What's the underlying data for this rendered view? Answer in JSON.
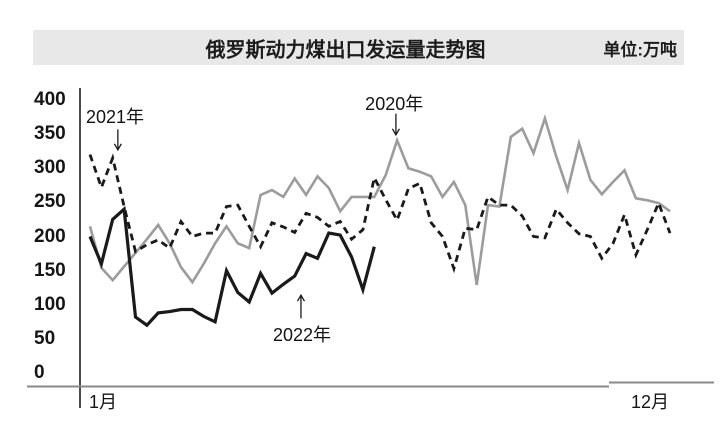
{
  "header": {
    "title": "俄罗斯动力煤出口发运量走势图",
    "unit_label": "单位:万吨"
  },
  "axes": {
    "y_ticks": [
      400,
      350,
      300,
      250,
      200,
      150,
      100,
      50,
      0
    ],
    "x_start_label": "1月",
    "x_end_label": "12月"
  },
  "annotations": [
    {
      "label": "2021年",
      "week": 3.2,
      "label_value": 377,
      "arrow_week": 3.45,
      "arrow_from_value": 357,
      "arrow_to_value": 327,
      "dir": "down"
    },
    {
      "label": "2020年",
      "week": 27.75,
      "label_value": 395,
      "arrow_week": 27.9,
      "arrow_from_value": 380,
      "arrow_to_value": 349,
      "dir": "down"
    },
    {
      "label": "2022年",
      "week": 19.64,
      "label_value": 57,
      "arrow_week": 19.55,
      "arrow_from_value": 80,
      "arrow_to_value": 114,
      "dir": "up"
    }
  ],
  "colors": {
    "ink": "#1a1a1a",
    "gray_series": "#9c9c9c",
    "axis_v": "#4a4a4a",
    "axis_h": "#8a8a8a",
    "titlebar_bg": "#e8e8e8"
  },
  "chart_data": {
    "type": "line",
    "title": "俄罗斯动力煤出口发运量走势图",
    "unit": "万吨",
    "x_unit": "week of year (weekly shipment volume)",
    "x_axis_labels_shown": [
      "1月",
      "12月"
    ],
    "ylim": [
      0,
      400
    ],
    "y_tick_step": 50,
    "grid": false,
    "legend": "inline arrow annotations (2020年 / 2021年 / 2022年)",
    "series": [
      {
        "name": "2020年",
        "style": "solid",
        "color": "#9c9c9c",
        "values": [
          215,
          154,
          136,
          156,
          176,
          196,
          217,
          190,
          155,
          133,
          160,
          190,
          215,
          190,
          183,
          261,
          268,
          258,
          285,
          261,
          288,
          271,
          237,
          258,
          258,
          258,
          290,
          341,
          300,
          295,
          288,
          258,
          280,
          246,
          129,
          246,
          244,
          346,
          358,
          322,
          373,
          317,
          268,
          337,
          283,
          262,
          280,
          297,
          256,
          253,
          249,
          237
        ]
      },
      {
        "name": "2021年",
        "style": "dashed",
        "color": "#1a1a1a",
        "values": [
          320,
          272,
          315,
          244,
          178,
          188,
          195,
          183,
          222,
          200,
          205,
          205,
          244,
          246,
          215,
          185,
          220,
          214,
          206,
          234,
          228,
          215,
          222,
          196,
          210,
          286,
          254,
          224,
          270,
          278,
          220,
          200,
          153,
          212,
          210,
          258,
          246,
          246,
          230,
          200,
          198,
          240,
          220,
          204,
          200,
          168,
          190,
          232,
          173,
          210,
          249,
          205
        ]
      },
      {
        "name": "2022年",
        "style": "solid",
        "color": "#1a1a1a",
        "values": [
          200,
          160,
          225,
          240,
          82,
          70,
          88,
          90,
          93,
          93,
          83,
          75,
          150,
          118,
          104,
          146,
          117,
          130,
          142,
          175,
          168,
          205,
          202,
          170,
          122,
          185
        ]
      }
    ]
  }
}
